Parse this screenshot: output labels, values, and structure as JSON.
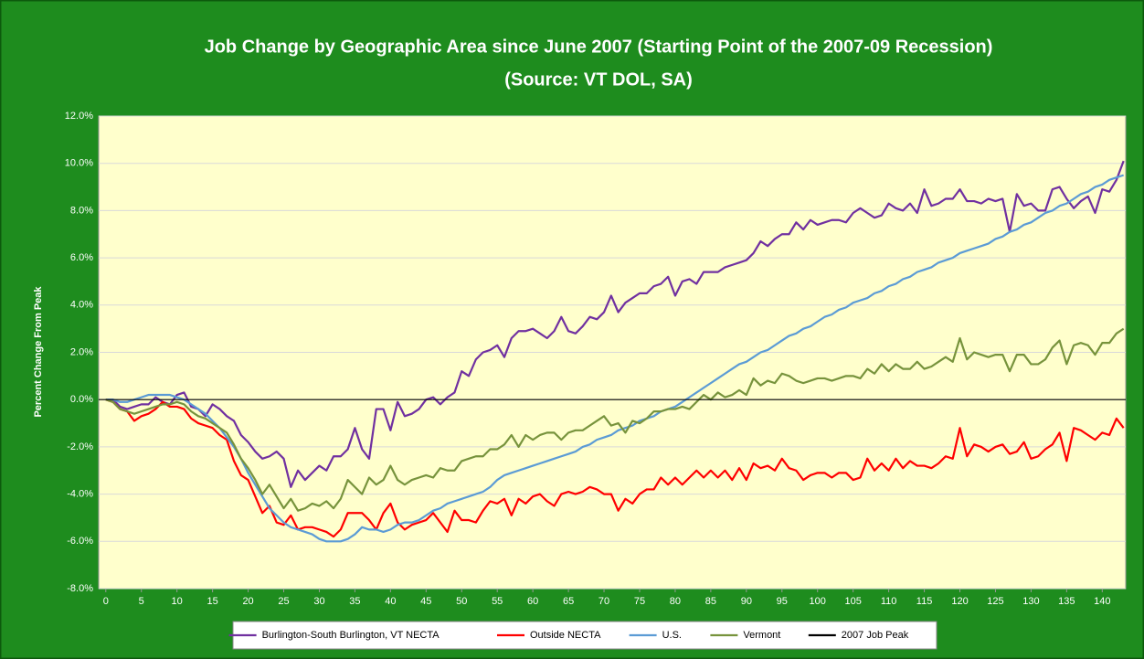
{
  "chart_data": {
    "type": "line",
    "title": "Job Change by Geographic Area since June 2007 (Starting Point of the 2007-09 Recession)",
    "subtitle": "(Source: VT DOL, SA)",
    "y_label": "Percent Change From Peak",
    "x": [
      0,
      1,
      2,
      3,
      4,
      5,
      6,
      7,
      8,
      9,
      10,
      11,
      12,
      13,
      14,
      15,
      16,
      17,
      18,
      19,
      20,
      21,
      22,
      23,
      24,
      25,
      26,
      27,
      28,
      29,
      30,
      31,
      32,
      33,
      34,
      35,
      36,
      37,
      38,
      39,
      40,
      41,
      42,
      43,
      44,
      45,
      46,
      47,
      48,
      49,
      50,
      51,
      52,
      53,
      54,
      55,
      56,
      57,
      58,
      59,
      60,
      61,
      62,
      63,
      64,
      65,
      66,
      67,
      68,
      69,
      70,
      71,
      72,
      73,
      74,
      75,
      76,
      77,
      78,
      79,
      80,
      81,
      82,
      83,
      84,
      85,
      86,
      87,
      88,
      89,
      90,
      91,
      92,
      93,
      94,
      95,
      96,
      97,
      98,
      99,
      100,
      101,
      102,
      103,
      104,
      105,
      106,
      107,
      108,
      109,
      110,
      111,
      112,
      113,
      114,
      115,
      116,
      117,
      118,
      119,
      120,
      121,
      122,
      123,
      124,
      125,
      126,
      127,
      128,
      129,
      130,
      131,
      132,
      133,
      134,
      135,
      136,
      137,
      138,
      139,
      140,
      141,
      142,
      143
    ],
    "series": [
      {
        "name": "Burlington-South Burlington, VT NECTA",
        "color": "#7030a0",
        "values": [
          0,
          0,
          -0.3,
          -0.4,
          -0.3,
          -0.2,
          -0.2,
          0.1,
          -0.1,
          -0.2,
          0.2,
          0.3,
          -0.3,
          -0.4,
          -0.7,
          -0.2,
          -0.4,
          -0.7,
          -0.9,
          -1.5,
          -1.8,
          -2.2,
          -2.5,
          -2.4,
          -2.2,
          -2.5,
          -3.7,
          -3.0,
          -3.4,
          -3.1,
          -2.8,
          -3.0,
          -2.4,
          -2.4,
          -2.1,
          -1.2,
          -2.1,
          -2.5,
          -0.4,
          -0.4,
          -1.3,
          -0.1,
          -0.7,
          -0.6,
          -0.4,
          0.0,
          0.1,
          -0.2,
          0.1,
          0.3,
          1.2,
          1.0,
          1.7,
          2.0,
          2.1,
          2.3,
          1.8,
          2.6,
          2.9,
          2.9,
          3.0,
          2.8,
          2.6,
          2.9,
          3.5,
          2.9,
          2.8,
          3.1,
          3.5,
          3.4,
          3.7,
          4.4,
          3.7,
          4.1,
          4.3,
          4.5,
          4.5,
          4.8,
          4.9,
          5.2,
          4.4,
          5.0,
          5.1,
          4.9,
          5.4,
          5.4,
          5.4,
          5.6,
          5.7,
          5.8,
          5.9,
          6.2,
          6.7,
          6.5,
          6.8,
          7.0,
          7.0,
          7.5,
          7.2,
          7.6,
          7.4,
          7.5,
          7.6,
          7.6,
          7.5,
          7.9,
          8.1,
          7.9,
          7.7,
          7.8,
          8.3,
          8.1,
          8.0,
          8.3,
          7.9,
          8.9,
          8.2,
          8.3,
          8.5,
          8.5,
          8.9,
          8.4,
          8.4,
          8.3,
          8.5,
          8.4,
          8.5,
          7.1,
          8.7,
          8.2,
          8.3,
          8.0,
          8.0,
          8.9,
          9.0,
          8.5,
          8.1,
          8.4,
          8.6,
          7.9,
          8.9,
          8.8,
          9.3,
          10.1
        ]
      },
      {
        "name": "Outside NECTA",
        "color": "#ff0000",
        "values": [
          0,
          -0.1,
          -0.4,
          -0.5,
          -0.9,
          -0.7,
          -0.6,
          -0.4,
          -0.1,
          -0.3,
          -0.3,
          -0.4,
          -0.8,
          -1.0,
          -1.1,
          -1.2,
          -1.5,
          -1.7,
          -2.6,
          -3.2,
          -3.4,
          -4.1,
          -4.8,
          -4.5,
          -5.2,
          -5.3,
          -4.9,
          -5.5,
          -5.4,
          -5.4,
          -5.5,
          -5.6,
          -5.8,
          -5.5,
          -4.8,
          -4.8,
          -4.8,
          -5.1,
          -5.5,
          -4.8,
          -4.4,
          -5.2,
          -5.5,
          -5.3,
          -5.2,
          -5.1,
          -4.8,
          -5.2,
          -5.6,
          -4.7,
          -5.1,
          -5.1,
          -5.2,
          -4.7,
          -4.3,
          -4.4,
          -4.2,
          -4.9,
          -4.2,
          -4.4,
          -4.1,
          -4.0,
          -4.3,
          -4.5,
          -4.0,
          -3.9,
          -4.0,
          -3.9,
          -3.7,
          -3.8,
          -4.0,
          -4.0,
          -4.7,
          -4.2,
          -4.4,
          -4.0,
          -3.8,
          -3.8,
          -3.3,
          -3.6,
          -3.3,
          -3.6,
          -3.3,
          -3.0,
          -3.3,
          -3.0,
          -3.3,
          -3.0,
          -3.4,
          -2.9,
          -3.4,
          -2.7,
          -2.9,
          -2.8,
          -3.0,
          -2.5,
          -2.9,
          -3.0,
          -3.4,
          -3.2,
          -3.1,
          -3.1,
          -3.3,
          -3.1,
          -3.1,
          -3.4,
          -3.3,
          -2.5,
          -3.0,
          -2.7,
          -3.0,
          -2.5,
          -2.9,
          -2.6,
          -2.8,
          -2.8,
          -2.9,
          -2.7,
          -2.4,
          -2.5,
          -1.2,
          -2.4,
          -1.9,
          -2.0,
          -2.2,
          -2.0,
          -1.9,
          -2.3,
          -2.2,
          -1.8,
          -2.5,
          -2.4,
          -2.1,
          -1.9,
          -1.4,
          -2.6,
          -1.2,
          -1.3,
          -1.5,
          -1.7,
          -1.4,
          -1.5,
          -0.8,
          -1.2
        ]
      },
      {
        "name": "U.S.",
        "color": "#5b9bd5",
        "values": [
          0,
          0,
          -0.1,
          -0.1,
          0,
          0.1,
          0.2,
          0.2,
          0.2,
          0.2,
          0.1,
          0.0,
          -0.2,
          -0.4,
          -0.6,
          -0.9,
          -1.2,
          -1.6,
          -2.0,
          -2.5,
          -3.1,
          -3.6,
          -4.1,
          -4.6,
          -4.9,
          -5.2,
          -5.4,
          -5.5,
          -5.6,
          -5.7,
          -5.9,
          -6.0,
          -6.0,
          -6.0,
          -5.9,
          -5.7,
          -5.4,
          -5.5,
          -5.5,
          -5.6,
          -5.5,
          -5.3,
          -5.2,
          -5.2,
          -5.1,
          -4.9,
          -4.7,
          -4.6,
          -4.4,
          -4.3,
          -4.2,
          -4.1,
          -4.0,
          -3.9,
          -3.7,
          -3.4,
          -3.2,
          -3.1,
          -3.0,
          -2.9,
          -2.8,
          -2.7,
          -2.6,
          -2.5,
          -2.4,
          -2.3,
          -2.2,
          -2.0,
          -1.9,
          -1.7,
          -1.6,
          -1.5,
          -1.3,
          -1.2,
          -1.1,
          -0.9,
          -0.8,
          -0.7,
          -0.5,
          -0.4,
          -0.3,
          -0.1,
          0.1,
          0.3,
          0.5,
          0.7,
          0.9,
          1.1,
          1.3,
          1.5,
          1.6,
          1.8,
          2.0,
          2.1,
          2.3,
          2.5,
          2.7,
          2.8,
          3.0,
          3.1,
          3.3,
          3.5,
          3.6,
          3.8,
          3.9,
          4.1,
          4.2,
          4.3,
          4.5,
          4.6,
          4.8,
          4.9,
          5.1,
          5.2,
          5.4,
          5.5,
          5.6,
          5.8,
          5.9,
          6.0,
          6.2,
          6.3,
          6.4,
          6.5,
          6.6,
          6.8,
          6.9,
          7.1,
          7.2,
          7.4,
          7.5,
          7.7,
          7.9,
          8.0,
          8.2,
          8.3,
          8.5,
          8.7,
          8.8,
          9.0,
          9.1,
          9.3,
          9.4,
          9.5
        ]
      },
      {
        "name": "Vermont",
        "color": "#77933c",
        "values": [
          0,
          -0.1,
          -0.4,
          -0.5,
          -0.6,
          -0.5,
          -0.4,
          -0.3,
          -0.2,
          -0.2,
          -0.1,
          -0.2,
          -0.5,
          -0.7,
          -0.8,
          -1.0,
          -1.2,
          -1.4,
          -1.9,
          -2.5,
          -2.9,
          -3.4,
          -4.0,
          -3.6,
          -4.1,
          -4.6,
          -4.2,
          -4.7,
          -4.6,
          -4.4,
          -4.5,
          -4.3,
          -4.6,
          -4.2,
          -3.4,
          -3.7,
          -4.0,
          -3.3,
          -3.6,
          -3.4,
          -2.8,
          -3.4,
          -3.6,
          -3.4,
          -3.3,
          -3.2,
          -3.3,
          -2.9,
          -3.0,
          -3.0,
          -2.6,
          -2.5,
          -2.4,
          -2.4,
          -2.1,
          -2.1,
          -1.9,
          -1.5,
          -2.0,
          -1.5,
          -1.7,
          -1.5,
          -1.4,
          -1.4,
          -1.7,
          -1.4,
          -1.3,
          -1.3,
          -1.1,
          -0.9,
          -0.7,
          -1.1,
          -1.0,
          -1.4,
          -0.9,
          -1.0,
          -0.8,
          -0.5,
          -0.5,
          -0.4,
          -0.4,
          -0.3,
          -0.4,
          -0.1,
          0.2,
          0.0,
          0.3,
          0.1,
          0.2,
          0.4,
          0.2,
          0.9,
          0.6,
          0.8,
          0.7,
          1.1,
          1.0,
          0.8,
          0.7,
          0.8,
          0.9,
          0.9,
          0.8,
          0.9,
          1.0,
          1.0,
          0.9,
          1.3,
          1.1,
          1.5,
          1.2,
          1.5,
          1.3,
          1.3,
          1.6,
          1.3,
          1.4,
          1.6,
          1.8,
          1.6,
          2.6,
          1.7,
          2.0,
          1.9,
          1.8,
          1.9,
          1.9,
          1.2,
          1.9,
          1.9,
          1.5,
          1.5,
          1.7,
          2.2,
          2.5,
          1.5,
          2.3,
          2.4,
          2.3,
          1.9,
          2.4,
          2.4,
          2.8,
          3.0
        ]
      }
    ],
    "reference_line": {
      "name": "2007 Job Peak",
      "color": "#000000",
      "value": 0
    },
    "xlim": [
      -1,
      143.3
    ],
    "xticks": [
      0,
      5,
      10,
      15,
      20,
      25,
      30,
      35,
      40,
      45,
      50,
      55,
      60,
      65,
      70,
      75,
      80,
      85,
      90,
      95,
      100,
      105,
      110,
      115,
      120,
      125,
      130,
      135,
      140
    ],
    "ylim": [
      -8,
      12
    ],
    "yticks": [
      {
        "value": -8,
        "label": "-8.0%"
      },
      {
        "value": -6,
        "label": "-6.0%"
      },
      {
        "value": -4,
        "label": "-4.0%"
      },
      {
        "value": -2,
        "label": "-2.0%"
      },
      {
        "value": 0,
        "label": "0.0%"
      },
      {
        "value": 2,
        "label": "2.0%"
      },
      {
        "value": 4,
        "label": "4.0%"
      },
      {
        "value": 6,
        "label": "6.0%"
      },
      {
        "value": 8,
        "label": "8.0%"
      },
      {
        "value": 10,
        "label": "10.0%"
      },
      {
        "value": 12,
        "label": "12.0%"
      }
    ],
    "grid": true,
    "legend": "bottom"
  }
}
